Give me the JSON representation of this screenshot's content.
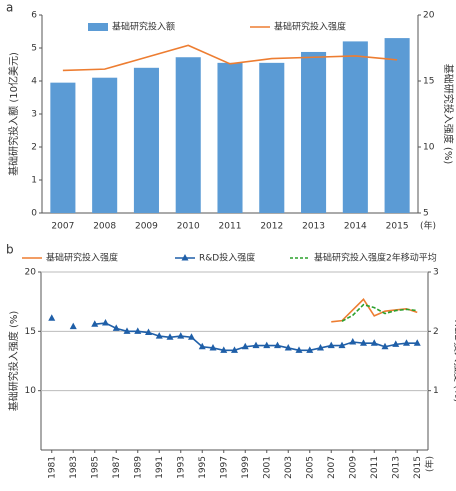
{
  "chart_data": [
    {
      "type": "bar",
      "panel_label": "a",
      "categories": [
        "2007",
        "2008",
        "2009",
        "2010",
        "2011",
        "2012",
        "2013",
        "2014",
        "2015"
      ],
      "x_unit": "(年)",
      "ylabel": "基础研究投入额 (10亿美元)",
      "y2label": "基础研究投入强度 (%)",
      "ylim": [
        0,
        6
      ],
      "yticks": [
        0,
        1,
        2,
        3,
        4,
        5,
        6
      ],
      "y2lim": [
        5,
        20
      ],
      "y2ticks": [
        5,
        10,
        15,
        20
      ],
      "grid": false,
      "series": [
        {
          "name": "基础研究投入额",
          "type": "bar",
          "color": "#5b9bd5",
          "values": [
            3.95,
            4.1,
            4.4,
            4.72,
            4.55,
            4.55,
            4.88,
            5.2,
            5.3
          ]
        },
        {
          "name": "基础研究投入强度",
          "type": "line",
          "axis": "y2",
          "color": "#ed7d31",
          "values": [
            15.8,
            15.9,
            16.8,
            17.7,
            16.3,
            16.7,
            16.8,
            16.9,
            16.6
          ]
        }
      ]
    },
    {
      "type": "line",
      "panel_label": "b",
      "x": [
        1981,
        1982,
        1983,
        1984,
        1985,
        1986,
        1987,
        1988,
        1989,
        1990,
        1991,
        1992,
        1993,
        1994,
        1995,
        1996,
        1997,
        1998,
        1999,
        2000,
        2001,
        2002,
        2003,
        2004,
        2005,
        2006,
        2007,
        2008,
        2009,
        2010,
        2011,
        2012,
        2013,
        2014,
        2015
      ],
      "x_unit": "(年)",
      "xlim": [
        1980,
        2016
      ],
      "xticks": [
        1981,
        1983,
        1985,
        1987,
        1989,
        1991,
        1993,
        1995,
        1997,
        1999,
        2001,
        2003,
        2005,
        2007,
        2009,
        2011,
        2013,
        2015
      ],
      "ylabel": "基础研究投入强度 (%)",
      "y2label": "R&D投入强度 (%)",
      "ylim": [
        5,
        20
      ],
      "yticks": [
        10,
        15,
        20
      ],
      "y2lim": [
        0,
        3
      ],
      "y2ticks": [
        1,
        2,
        3
      ],
      "grid": true,
      "series": [
        {
          "name": "基础研究投入强度",
          "type": "line",
          "color": "#ed7d31",
          "values": [
            null,
            null,
            null,
            null,
            null,
            null,
            null,
            null,
            null,
            null,
            null,
            null,
            null,
            null,
            null,
            null,
            null,
            null,
            null,
            null,
            null,
            null,
            null,
            null,
            null,
            null,
            15.8,
            15.9,
            16.8,
            17.7,
            16.3,
            16.7,
            16.8,
            16.9,
            16.6
          ]
        },
        {
          "name": "R&D投入强度",
          "type": "line",
          "axis": "y2",
          "color": "#1f5fa8",
          "marker": "triangle",
          "values": [
            2.22,
            null,
            2.08,
            null,
            2.12,
            2.14,
            2.05,
            2.0,
            2.0,
            1.98,
            1.92,
            1.9,
            1.92,
            1.9,
            1.74,
            1.72,
            1.68,
            1.68,
            1.74,
            1.76,
            1.76,
            1.76,
            1.72,
            1.68,
            1.68,
            1.72,
            1.76,
            1.76,
            1.82,
            1.8,
            1.8,
            1.74,
            1.78,
            1.8,
            1.8
          ]
        },
        {
          "name": "基础研究投入强度2年移动平均",
          "type": "line",
          "color": "#2ca02c",
          "dash": true,
          "values": [
            null,
            null,
            null,
            null,
            null,
            null,
            null,
            null,
            null,
            null,
            null,
            null,
            null,
            null,
            null,
            null,
            null,
            null,
            null,
            null,
            null,
            null,
            null,
            null,
            null,
            null,
            null,
            15.85,
            16.35,
            17.25,
            17.0,
            16.5,
            16.75,
            16.85,
            16.75
          ]
        }
      ]
    }
  ]
}
